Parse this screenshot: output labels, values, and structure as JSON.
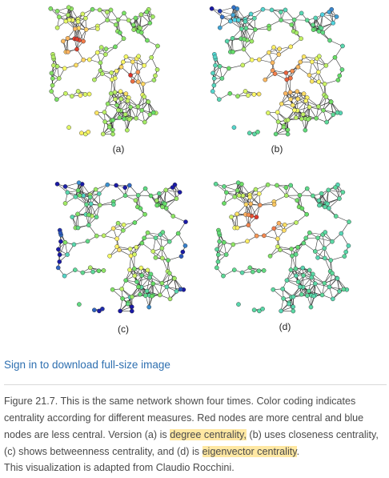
{
  "figure": {
    "panels": [
      {
        "label": "(a)",
        "measure": "degree centrality"
      },
      {
        "label": "(b)",
        "measure": "closeness centrality"
      },
      {
        "label": "(c)",
        "measure": "betweenness centrality"
      },
      {
        "label": "(d)",
        "measure": "eigenvector centrality"
      }
    ],
    "color_scale": {
      "high": "#d7191c",
      "mid_high": "#fdae61",
      "mid": "#ffff66",
      "mid_low": "#66dd66",
      "low_cyan": "#4fd3e8",
      "low": "#1a1aa6"
    }
  },
  "link": {
    "signin": "Sign in to download full-size image"
  },
  "caption": {
    "part1": "Figure 21.7. This is the same network shown four times. Color coding indicates centrality according for different measures. Red nodes are more central and blue nodes are less central. Version (a) is ",
    "hl1": "degree centrality,",
    "part2": " (b) uses closeness centrality, (c) shows betweenness centrality, and (d) is ",
    "hl2": "eigenvector centrality",
    "part3": ".",
    "credit": "This visualization is adapted from Claudio Rocchini."
  }
}
